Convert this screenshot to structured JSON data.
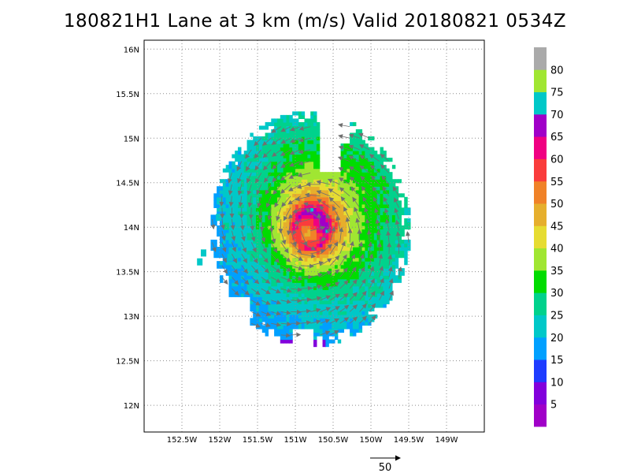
{
  "chart_data": {
    "type": "heatmap",
    "title": "180821H1 Lane at 3 km (m/s) Valid 20180821  0534Z",
    "xlabel": "",
    "ylabel": "",
    "xlim": [
      -153.0,
      -148.5
    ],
    "ylim": [
      11.7,
      16.1
    ],
    "x_ticks": [
      {
        "value": -152.5,
        "label": "152.5W"
      },
      {
        "value": -152.0,
        "label": "152W"
      },
      {
        "value": -151.5,
        "label": "151.5W"
      },
      {
        "value": -151.0,
        "label": "151W"
      },
      {
        "value": -150.5,
        "label": "150.5W"
      },
      {
        "value": -150.0,
        "label": "150W"
      },
      {
        "value": -149.5,
        "label": "149.5W"
      },
      {
        "value": -149.0,
        "label": "149W"
      }
    ],
    "y_ticks": [
      {
        "value": 12.0,
        "label": "12N"
      },
      {
        "value": 12.5,
        "label": "12.5N"
      },
      {
        "value": 13.0,
        "label": "13N"
      },
      {
        "value": 13.5,
        "label": "13.5N"
      },
      {
        "value": 14.0,
        "label": "14N"
      },
      {
        "value": 14.5,
        "label": "14.5N"
      },
      {
        "value": 15.0,
        "label": "15N"
      },
      {
        "value": 15.5,
        "label": "15.5N"
      },
      {
        "value": 16.0,
        "label": "16N"
      }
    ],
    "grid": true,
    "center": {
      "lon": -150.8,
      "lat": 13.98
    },
    "rmw_deg": 0.22,
    "vmax_ms": 65,
    "colorbar": {
      "placement": "right",
      "levels": [
        0,
        5,
        10,
        15,
        20,
        25,
        30,
        35,
        40,
        45,
        50,
        55,
        60,
        65,
        70,
        75,
        80,
        85
      ],
      "labels": [
        "5",
        "10",
        "15",
        "20",
        "25",
        "30",
        "35",
        "40",
        "45",
        "50",
        "55",
        "60",
        "65",
        "70",
        "75",
        "80"
      ],
      "colors": [
        "#a000c8",
        "#8200dc",
        "#1e3cff",
        "#00a0ff",
        "#00c8c8",
        "#00d28c",
        "#00dc00",
        "#a0e632",
        "#e6dc32",
        "#e6af2d",
        "#f08228",
        "#fa3c3c",
        "#f00082",
        "#a000c8",
        "#00c8c8",
        "#a0e632",
        "#aaaaaa"
      ]
    },
    "reference_vector": {
      "value": 50,
      "label": "50",
      "units": "m/s"
    }
  }
}
